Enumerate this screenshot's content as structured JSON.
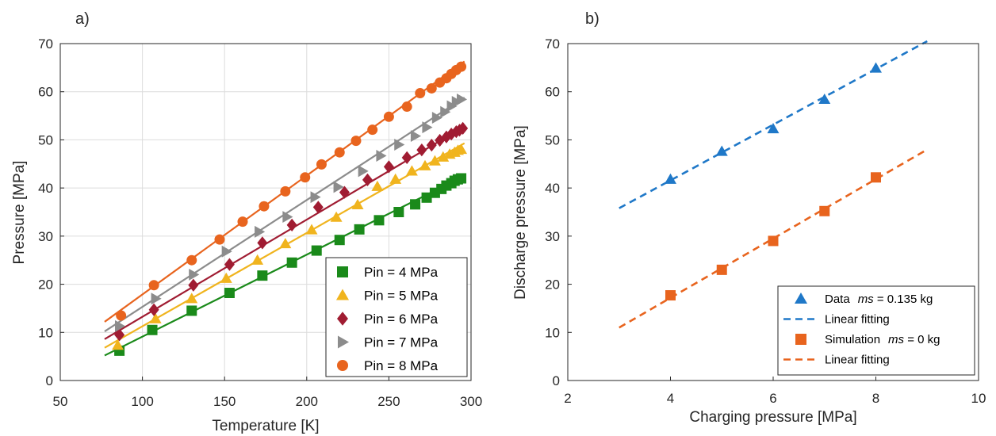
{
  "chart_data": [
    {
      "panel_label": "a)",
      "type": "scatter",
      "xlabel": "Temperature [K]",
      "ylabel": "Pressure [MPa]",
      "xlim": [
        50,
        300
      ],
      "ylim": [
        0,
        70
      ],
      "xticks": [
        50,
        100,
        150,
        200,
        250,
        300
      ],
      "yticks": [
        0,
        10,
        20,
        30,
        40,
        50,
        60,
        70
      ],
      "grid": true,
      "legend_position": "bottom-right",
      "series": [
        {
          "name": "Pin = 4 MPa",
          "color": "#1a8a1a",
          "marker": "square",
          "x": [
            86,
            106,
            130,
            153,
            173,
            191,
            206,
            220,
            232,
            244,
            256,
            266,
            273,
            278,
            282,
            285,
            288,
            290,
            292,
            294
          ],
          "y": [
            6.2,
            10.5,
            14.5,
            18.2,
            21.8,
            24.5,
            27.0,
            29.2,
            31.4,
            33.3,
            35.0,
            36.6,
            38.0,
            39.0,
            39.8,
            40.5,
            41.0,
            41.5,
            41.8,
            42.0
          ],
          "fit": [
            [
              77,
              5.2
            ],
            [
              296,
              42.5
            ]
          ]
        },
        {
          "name": "Pin = 5 MPa",
          "color": "#f0b41e",
          "marker": "triangle-up",
          "x": [
            85,
            108,
            130,
            151,
            170,
            187,
            203,
            218,
            231,
            243,
            254,
            264,
            272,
            278,
            283,
            287,
            290,
            292,
            294
          ],
          "y": [
            7.3,
            12.8,
            17.0,
            21.2,
            25.0,
            28.4,
            31.3,
            33.9,
            36.5,
            40.3,
            41.8,
            43.5,
            44.6,
            45.6,
            46.4,
            47.0,
            47.4,
            47.8,
            48.0
          ],
          "fit": [
            [
              77,
              6.8
            ],
            [
              296,
              49.3
            ]
          ]
        },
        {
          "name": "Pin = 6 MPa",
          "color": "#a01c32",
          "marker": "diamond",
          "x": [
            86,
            107,
            131,
            153,
            173,
            191,
            207,
            223,
            237,
            250,
            261,
            270,
            276,
            281,
            285,
            288,
            291,
            293,
            295
          ],
          "y": [
            9.5,
            14.7,
            19.8,
            24.1,
            28.6,
            32.3,
            36.0,
            39.1,
            41.7,
            44.4,
            46.3,
            47.9,
            48.9,
            49.9,
            50.6,
            51.2,
            51.7,
            52.0,
            52.4
          ],
          "fit": [
            [
              77,
              8.6
            ],
            [
              296,
              52.8
            ]
          ]
        },
        {
          "name": "Pin = 7 MPa",
          "color": "#8c8c8c",
          "marker": "triangle-right",
          "x": [
            86,
            108,
            131,
            151,
            171,
            188,
            205,
            219,
            234,
            245,
            256,
            266,
            273,
            279,
            284,
            288,
            291,
            294
          ],
          "y": [
            11.3,
            17.0,
            22.0,
            26.8,
            30.9,
            34.0,
            38.1,
            40.2,
            43.5,
            46.7,
            49.0,
            50.8,
            52.6,
            54.6,
            55.8,
            57.0,
            57.9,
            58.4
          ],
          "fit": [
            [
              77,
              10.2
            ],
            [
              296,
              58.8
            ]
          ]
        },
        {
          "name": "Pin = 8 MPa",
          "color": "#e8641e",
          "marker": "circle",
          "x": [
            87,
            107,
            130,
            147,
            161,
            174,
            187,
            199,
            209,
            220,
            230,
            240,
            250,
            261,
            269,
            276,
            281,
            285,
            288,
            291,
            294
          ],
          "y": [
            13.5,
            19.8,
            25.0,
            29.3,
            33.0,
            36.2,
            39.3,
            42.2,
            44.9,
            47.4,
            49.8,
            52.1,
            54.8,
            56.9,
            59.7,
            60.7,
            61.9,
            62.8,
            63.7,
            64.5,
            65.2
          ],
          "fit": [
            [
              77,
              12.2
            ],
            [
              296,
              66.3
            ]
          ]
        }
      ]
    },
    {
      "panel_label": "b)",
      "type": "scatter",
      "xlabel": "Charging pressure [MPa]",
      "ylabel": "Discharge pressure [MPa]",
      "xlim": [
        2,
        10
      ],
      "ylim": [
        0,
        70
      ],
      "xticks": [
        2,
        4,
        6,
        8,
        10
      ],
      "yticks": [
        0,
        10,
        20,
        30,
        40,
        50,
        60,
        70
      ],
      "grid": false,
      "legend_position": "bottom-right",
      "series": [
        {
          "name": "Data",
          "name_suffix": "ms",
          "name_value": " = 0.135 kg",
          "color": "#1f78c8",
          "marker": "triangle-up",
          "x": [
            4,
            5,
            6,
            7,
            8
          ],
          "y": [
            41.8,
            47.6,
            52.3,
            58.4,
            64.9
          ]
        },
        {
          "name": "Linear fitting",
          "color": "#1f78c8",
          "line": "dashed",
          "x": [
            3,
            9
          ],
          "y": [
            35.8,
            70.5
          ]
        },
        {
          "name": "Simulation",
          "name_suffix": "ms",
          "name_value": " = 0 kg",
          "color": "#e8641e",
          "marker": "square",
          "x": [
            4,
            5,
            6,
            7,
            8
          ],
          "y": [
            17.7,
            23.0,
            29.0,
            35.2,
            42.2
          ]
        },
        {
          "name": "Linear fitting",
          "color": "#e8641e",
          "line": "dashed",
          "x": [
            3,
            9
          ],
          "y": [
            11.0,
            48.0
          ]
        }
      ]
    }
  ]
}
